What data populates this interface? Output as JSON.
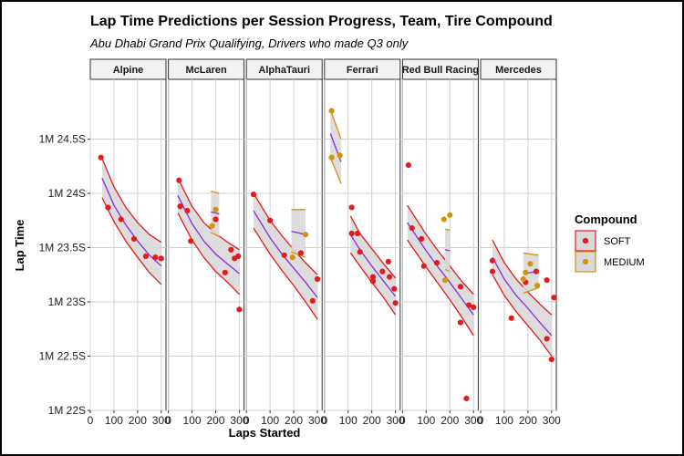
{
  "chart_data": {
    "type": "scatter",
    "title": "Lap Time Predictions per Session Progress, Team, Tire Compound",
    "subtitle": "Abu Dhabi Grand Prix Qualifying, Drivers who made Q3 only",
    "xlabel": "Laps Started",
    "ylabel": "Lap Time",
    "xlim": [
      0,
      320
    ],
    "ylim": [
      22.0,
      25.05
    ],
    "x_ticks": [
      0,
      100,
      200,
      300
    ],
    "x_tick_labels": [
      "0",
      "100",
      "200",
      "300"
    ],
    "y_ticks": [
      22.0,
      22.5,
      23.0,
      23.5,
      24.0,
      24.5
    ],
    "y_tick_labels": [
      "1M 22S",
      "1M 22.5S",
      "1M 23S",
      "1M 23.5S",
      "1M 24S",
      "1M 24.5S"
    ],
    "grid": true,
    "legend": {
      "title": "Compound",
      "position": "right",
      "entries": [
        {
          "name": "SOFT",
          "color": "#e41a1c"
        },
        {
          "name": "MEDIUM",
          "color": "#d4930d"
        }
      ]
    },
    "colors": {
      "SOFT": "#e41a1c",
      "MEDIUM": "#d4930d",
      "fit": "#8a2be2",
      "ribbon": "#d9d9d9"
    },
    "panels": [
      {
        "team": "Alpine",
        "points": [
          {
            "x": 45,
            "y": 24.33,
            "compound": "SOFT"
          },
          {
            "x": 75,
            "y": 23.87,
            "compound": "SOFT"
          },
          {
            "x": 130,
            "y": 23.76,
            "compound": "SOFT"
          },
          {
            "x": 185,
            "y": 23.58,
            "compound": "SOFT"
          },
          {
            "x": 235,
            "y": 23.42,
            "compound": "SOFT"
          },
          {
            "x": 275,
            "y": 23.41,
            "compound": "SOFT"
          },
          {
            "x": 300,
            "y": 23.4,
            "compound": "SOFT"
          }
        ],
        "bands": [
          {
            "compound": "SOFT",
            "x": [
              50,
              100,
              150,
              200,
              250,
              300
            ],
            "fit": [
              24.14,
              23.89,
              23.71,
              23.56,
              23.43,
              23.33
            ],
            "lower": [
              23.96,
              23.74,
              23.56,
              23.41,
              23.27,
              23.16
            ],
            "upper": [
              24.32,
              24.06,
              23.87,
              23.73,
              23.62,
              23.55
            ]
          }
        ]
      },
      {
        "team": "McLaren",
        "points": [
          {
            "x": 45,
            "y": 24.12,
            "compound": "SOFT"
          },
          {
            "x": 50,
            "y": 23.88,
            "compound": "SOFT"
          },
          {
            "x": 80,
            "y": 23.84,
            "compound": "SOFT"
          },
          {
            "x": 95,
            "y": 23.56,
            "compound": "SOFT"
          },
          {
            "x": 200,
            "y": 23.76,
            "compound": "SOFT"
          },
          {
            "x": 240,
            "y": 23.27,
            "compound": "SOFT"
          },
          {
            "x": 265,
            "y": 23.48,
            "compound": "SOFT"
          },
          {
            "x": 280,
            "y": 23.4,
            "compound": "SOFT"
          },
          {
            "x": 295,
            "y": 23.42,
            "compound": "SOFT"
          },
          {
            "x": 300,
            "y": 22.93,
            "compound": "SOFT"
          },
          {
            "x": 185,
            "y": 23.7,
            "compound": "MEDIUM"
          },
          {
            "x": 200,
            "y": 23.85,
            "compound": "MEDIUM"
          }
        ],
        "bands": [
          {
            "compound": "SOFT",
            "x": [
              40,
              100,
              150,
              200,
              250,
              300
            ],
            "fit": [
              23.98,
              23.72,
              23.56,
              23.44,
              23.35,
              23.26
            ],
            "lower": [
              23.82,
              23.57,
              23.41,
              23.28,
              23.18,
              23.07
            ],
            "upper": [
              24.14,
              23.88,
              23.73,
              23.63,
              23.55,
              23.48
            ]
          },
          {
            "compound": "MEDIUM",
            "x": [
              180,
              215
            ],
            "fit": [
              23.83,
              23.81
            ],
            "lower": [
              23.64,
              23.6
            ],
            "upper": [
              24.02,
              24.0
            ]
          }
        ]
      },
      {
        "team": "AlphaTauri",
        "points": [
          {
            "x": 30,
            "y": 23.99,
            "compound": "SOFT"
          },
          {
            "x": 100,
            "y": 23.75,
            "compound": "SOFT"
          },
          {
            "x": 160,
            "y": 23.43,
            "compound": "SOFT"
          },
          {
            "x": 230,
            "y": 23.45,
            "compound": "SOFT"
          },
          {
            "x": 300,
            "y": 23.21,
            "compound": "SOFT"
          },
          {
            "x": 280,
            "y": 23.01,
            "compound": "SOFT"
          },
          {
            "x": 195,
            "y": 23.41,
            "compound": "MEDIUM"
          },
          {
            "x": 250,
            "y": 23.62,
            "compound": "MEDIUM"
          }
        ],
        "bands": [
          {
            "compound": "SOFT",
            "x": [
              30,
              100,
              150,
              200,
              250,
              300
            ],
            "fit": [
              23.84,
              23.59,
              23.44,
              23.31,
              23.18,
              23.04
            ],
            "lower": [
              23.68,
              23.44,
              23.29,
              23.15,
              23.0,
              22.84
            ],
            "upper": [
              24.0,
              23.75,
              23.61,
              23.48,
              23.36,
              23.25
            ]
          },
          {
            "compound": "MEDIUM",
            "x": [
              190,
              250
            ],
            "fit": [
              23.65,
              23.62
            ],
            "lower": [
              23.46,
              23.41
            ],
            "upper": [
              23.85,
              23.85
            ]
          }
        ]
      },
      {
        "team": "Ferrari",
        "points": [
          {
            "x": 30,
            "y": 24.76,
            "compound": "MEDIUM"
          },
          {
            "x": 30,
            "y": 24.33,
            "compound": "MEDIUM"
          },
          {
            "x": 65,
            "y": 24.35,
            "compound": "MEDIUM"
          },
          {
            "x": 115,
            "y": 23.87,
            "compound": "SOFT"
          },
          {
            "x": 115,
            "y": 23.63,
            "compound": "SOFT"
          },
          {
            "x": 140,
            "y": 23.63,
            "compound": "SOFT"
          },
          {
            "x": 150,
            "y": 23.46,
            "compound": "SOFT"
          },
          {
            "x": 205,
            "y": 23.23,
            "compound": "SOFT"
          },
          {
            "x": 205,
            "y": 23.19,
            "compound": "SOFT"
          },
          {
            "x": 245,
            "y": 23.28,
            "compound": "SOFT"
          },
          {
            "x": 270,
            "y": 23.37,
            "compound": "SOFT"
          },
          {
            "x": 275,
            "y": 23.23,
            "compound": "SOFT"
          },
          {
            "x": 295,
            "y": 23.12,
            "compound": "SOFT"
          },
          {
            "x": 300,
            "y": 22.99,
            "compound": "SOFT"
          }
        ],
        "bands": [
          {
            "compound": "SOFT",
            "x": [
              110,
              150,
              200,
              250,
              300
            ],
            "fit": [
              23.62,
              23.48,
              23.33,
              23.19,
              23.05
            ],
            "lower": [
              23.45,
              23.33,
              23.18,
              23.04,
              22.88
            ],
            "upper": [
              23.79,
              23.63,
              23.49,
              23.35,
              23.22
            ]
          },
          {
            "compound": "MEDIUM",
            "x": [
              25,
              70
            ],
            "fit": [
              24.55,
              24.29
            ],
            "lower": [
              24.33,
              24.09
            ],
            "upper": [
              24.77,
              24.5
            ]
          }
        ]
      },
      {
        "team": "Red Bull Racing",
        "points": [
          {
            "x": 25,
            "y": 24.26,
            "compound": "SOFT"
          },
          {
            "x": 40,
            "y": 23.68,
            "compound": "SOFT"
          },
          {
            "x": 80,
            "y": 23.58,
            "compound": "SOFT"
          },
          {
            "x": 90,
            "y": 23.33,
            "compound": "SOFT"
          },
          {
            "x": 145,
            "y": 23.36,
            "compound": "SOFT"
          },
          {
            "x": 245,
            "y": 23.14,
            "compound": "SOFT"
          },
          {
            "x": 245,
            "y": 22.81,
            "compound": "SOFT"
          },
          {
            "x": 280,
            "y": 22.97,
            "compound": "SOFT"
          },
          {
            "x": 300,
            "y": 22.95,
            "compound": "SOFT"
          },
          {
            "x": 270,
            "y": 22.11,
            "compound": "SOFT"
          },
          {
            "x": 175,
            "y": 23.76,
            "compound": "MEDIUM"
          },
          {
            "x": 200,
            "y": 23.8,
            "compound": "MEDIUM"
          },
          {
            "x": 180,
            "y": 23.2,
            "compound": "MEDIUM"
          }
        ],
        "bands": [
          {
            "compound": "SOFT",
            "x": [
              20,
              100,
              150,
              200,
              250,
              300
            ],
            "fit": [
              23.73,
              23.47,
              23.32,
              23.18,
              23.03,
              22.88
            ],
            "lower": [
              23.57,
              23.32,
              23.17,
              23.02,
              22.86,
              22.69
            ],
            "upper": [
              23.89,
              23.62,
              23.47,
              23.33,
              23.19,
              23.07
            ]
          },
          {
            "compound": "MEDIUM",
            "x": [
              180,
              200
            ],
            "fit": [
              23.48,
              23.47
            ],
            "lower": [
              23.3,
              23.28
            ],
            "upper": [
              23.67,
              23.66
            ]
          }
        ]
      },
      {
        "team": "Mercedes",
        "points": [
          {
            "x": 50,
            "y": 23.38,
            "compound": "SOFT"
          },
          {
            "x": 50,
            "y": 23.28,
            "compound": "SOFT"
          },
          {
            "x": 130,
            "y": 22.85,
            "compound": "SOFT"
          },
          {
            "x": 190,
            "y": 23.18,
            "compound": "SOFT"
          },
          {
            "x": 235,
            "y": 23.28,
            "compound": "SOFT"
          },
          {
            "x": 280,
            "y": 23.2,
            "compound": "SOFT"
          },
          {
            "x": 280,
            "y": 22.66,
            "compound": "SOFT"
          },
          {
            "x": 300,
            "y": 22.47,
            "compound": "SOFT"
          },
          {
            "x": 310,
            "y": 23.04,
            "compound": "SOFT"
          },
          {
            "x": 180,
            "y": 23.21,
            "compound": "MEDIUM"
          },
          {
            "x": 190,
            "y": 23.27,
            "compound": "MEDIUM"
          },
          {
            "x": 210,
            "y": 23.35,
            "compound": "MEDIUM"
          },
          {
            "x": 240,
            "y": 23.15,
            "compound": "MEDIUM"
          }
        ],
        "bands": [
          {
            "compound": "SOFT",
            "x": [
              50,
              100,
              150,
              200,
              250,
              300
            ],
            "fit": [
              23.41,
              23.21,
              23.06,
              22.94,
              22.81,
              22.69
            ],
            "lower": [
              23.25,
              23.06,
              22.91,
              22.78,
              22.65,
              22.5
            ],
            "upper": [
              23.57,
              23.36,
              23.21,
              23.09,
              22.98,
              22.88
            ]
          },
          {
            "compound": "MEDIUM",
            "x": [
              180,
              245
            ],
            "fit": [
              23.26,
              23.28
            ],
            "lower": [
              23.08,
              23.13
            ],
            "upper": [
              23.45,
              23.43
            ]
          }
        ]
      }
    ]
  }
}
